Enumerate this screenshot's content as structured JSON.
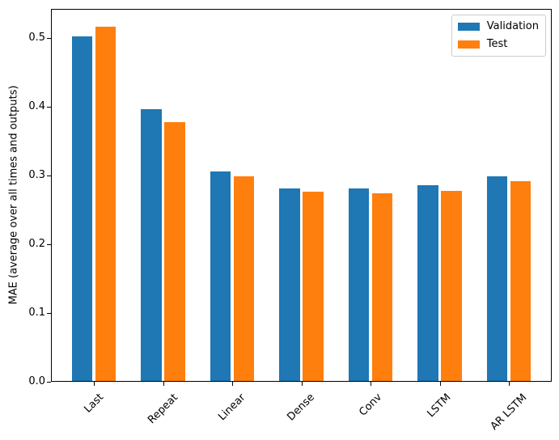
{
  "chart_data": {
    "type": "bar",
    "title": "",
    "categories": [
      "Last",
      "Repeat",
      "Linear",
      "Dense",
      "Conv",
      "LSTM",
      "AR LSTM"
    ],
    "series": [
      {
        "name": "Validation",
        "color": "#1f77b4",
        "values": [
          0.502,
          0.396,
          0.306,
          0.281,
          0.281,
          0.286,
          0.299
        ]
      },
      {
        "name": "Test",
        "color": "#ff7f0e",
        "values": [
          0.516,
          0.378,
          0.299,
          0.276,
          0.274,
          0.277,
          0.292
        ]
      }
    ],
    "xlabel": "",
    "ylabel": "MAE (average over all times and outputs)",
    "ytick_labels": [
      "0.0",
      "0.1",
      "0.2",
      "0.3",
      "0.4",
      "0.5"
    ],
    "yticks": [
      0.0,
      0.1,
      0.2,
      0.3,
      0.4,
      0.5
    ],
    "ylim": [
      0,
      0.542
    ],
    "xlim": [
      -0.62,
      6.62
    ],
    "bar_width": 0.3,
    "bar_offset": 0.17,
    "xtick_rotation": 45,
    "grid": false,
    "legend": {
      "position": "upper right",
      "entries": [
        "Validation",
        "Test"
      ]
    }
  }
}
